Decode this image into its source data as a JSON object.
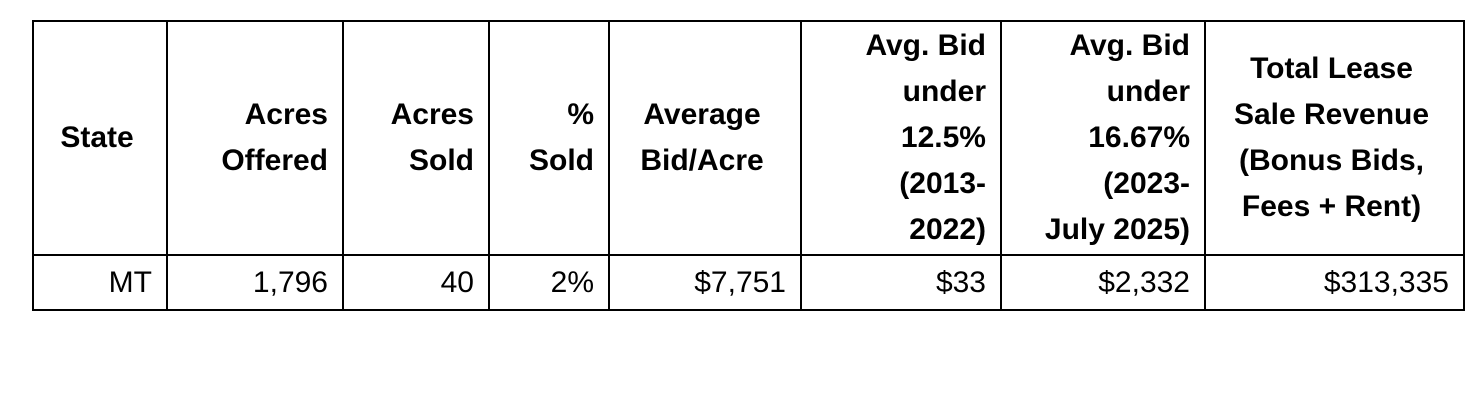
{
  "table": {
    "headers": [
      [
        "State"
      ],
      [
        "Acres",
        "Offered"
      ],
      [
        "Acres",
        "Sold"
      ],
      [
        "%",
        "Sold"
      ],
      [
        "Average",
        "Bid/Acre"
      ],
      [
        "Avg. Bid",
        "under",
        "12.5%",
        "(2013-",
        "2022)"
      ],
      [
        "Avg. Bid",
        "under",
        "16.67%",
        "(2023-",
        "July 2025)"
      ],
      [
        "Total Lease",
        "Sale Revenue",
        "(Bonus Bids,",
        "Fees + Rent)"
      ]
    ],
    "rows": [
      [
        "MT",
        "1,796",
        "40",
        "2%",
        "$7,751",
        "$33",
        "$2,332",
        "$313,335"
      ]
    ]
  }
}
